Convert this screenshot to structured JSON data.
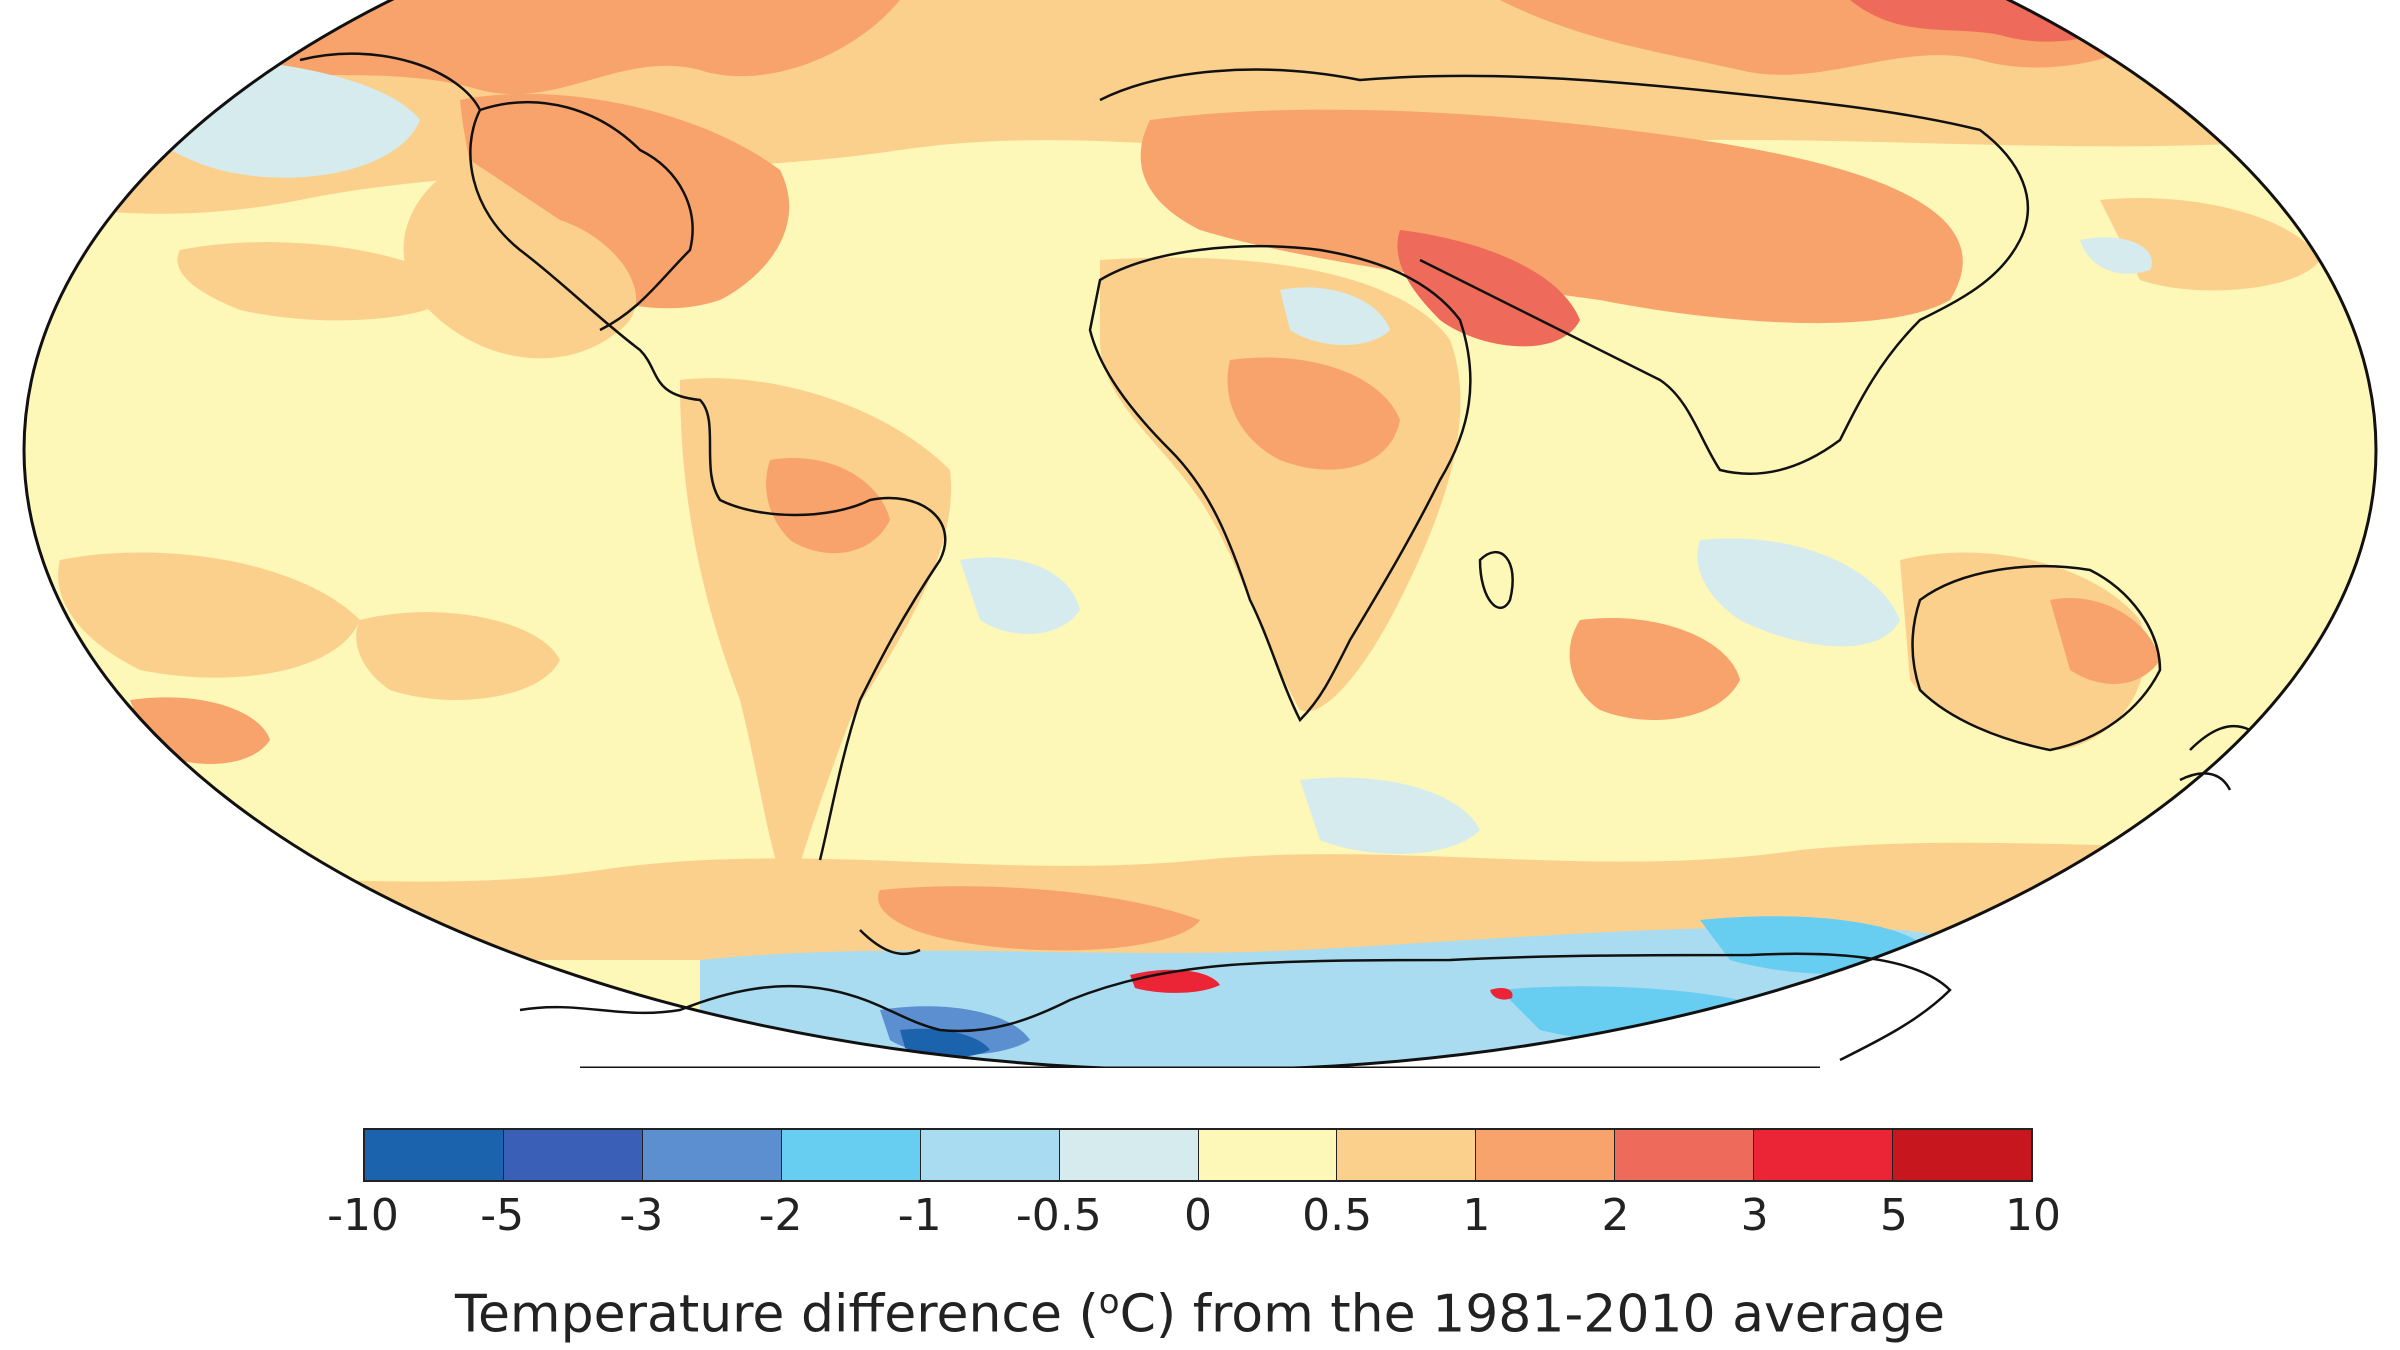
{
  "legend": {
    "title_pre": "Temperature difference (",
    "title_sup": "o",
    "title_post": "C) from the 1981-2010 average",
    "ticks": [
      "-10",
      "-5",
      "-3",
      "-2",
      "-1",
      "-0.5",
      "0",
      "0.5",
      "1",
      "2",
      "3",
      "5",
      "10"
    ],
    "colors": [
      "#1c63ad",
      "#3a5fb6",
      "#5b8fd0",
      "#67cdf1",
      "#a9dcf0",
      "#d5ebee",
      "#fdf7b8",
      "#fbd08c",
      "#f7a36b",
      "#ee6a5a",
      "#eb2436",
      "#c7161e"
    ]
  },
  "map": {
    "ocean_color": "#fdf7b8",
    "outline_color": "#111111"
  }
}
